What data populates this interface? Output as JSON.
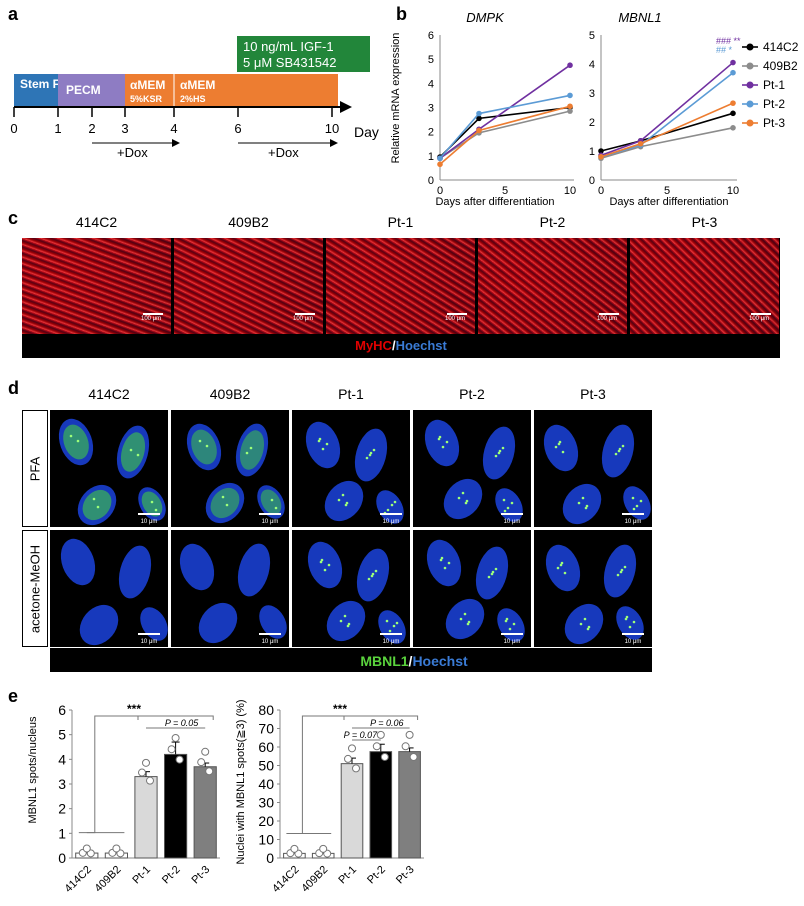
{
  "panel_labels": {
    "a": "a",
    "b": "b",
    "c": "c",
    "d": "d",
    "e": "e"
  },
  "timeline": {
    "stages": [
      "Stem Fit",
      "PECM",
      "αMEM",
      "αMEM"
    ],
    "stage_notes": [
      "5%KSR",
      "2%HS"
    ],
    "treatment": [
      "10 ng/mL IGF-1",
      "5 μM SB431542"
    ],
    "ticks": [
      "0",
      "1",
      "2",
      "3",
      "4",
      "6",
      "10"
    ],
    "unit": "Day",
    "dox_label": "+Dox",
    "colors": {
      "stemfit": "#2e75b6",
      "pecm": "#8e7cc3",
      "amem": "#ed7d31",
      "treat": "#22863a"
    }
  },
  "legend": {
    "items": [
      {
        "name": "414C2",
        "color": "#000000"
      },
      {
        "name": "409B2",
        "color": "#8c8c8c"
      },
      {
        "name": "Pt-1",
        "color": "#7030a0"
      },
      {
        "name": "Pt-2",
        "color": "#5b9bd5"
      },
      {
        "name": "Pt-3",
        "color": "#ed7d31"
      }
    ]
  },
  "sig_marks": {
    "row1": "###  **",
    "row2": "##    *"
  },
  "panel_c": {
    "lines": [
      "414C2",
      "409B2",
      "Pt-1",
      "Pt-2",
      "Pt-3"
    ],
    "scale": "100 μm",
    "stain_a": "MyHC",
    "stain_b": "Hoechst"
  },
  "panel_d": {
    "lines": [
      "414C2",
      "409B2",
      "Pt-1",
      "Pt-2",
      "Pt-3"
    ],
    "rows": [
      "PFA",
      "acetone-MeOH"
    ],
    "scale": "10 μm",
    "stain_a": "MBNL1",
    "stain_b": "Hoechst"
  },
  "chart_data": [
    {
      "type": "line",
      "title": "DMPK",
      "xlabel": "Days after differentiation",
      "ylabel": "Relative mRNA expression",
      "x": [
        0,
        3,
        10
      ],
      "ylim": [
        0,
        6
      ],
      "yticks": [
        0,
        1,
        2,
        3,
        4,
        5,
        6
      ],
      "series": [
        {
          "name": "414C2",
          "values": [
            0.95,
            2.55,
            3.0
          ]
        },
        {
          "name": "409B2",
          "values": [
            0.9,
            1.95,
            2.85
          ]
        },
        {
          "name": "Pt-1",
          "values": [
            0.9,
            2.1,
            4.75
          ]
        },
        {
          "name": "Pt-2",
          "values": [
            0.9,
            2.75,
            3.5
          ]
        },
        {
          "name": "Pt-3",
          "values": [
            0.65,
            2.05,
            3.05
          ]
        }
      ]
    },
    {
      "type": "line",
      "title": "MBNL1",
      "xlabel": "Days after differentiation",
      "ylabel": "",
      "x": [
        0,
        3,
        10
      ],
      "ylim": [
        0,
        5
      ],
      "yticks": [
        0,
        1,
        2,
        3,
        4,
        5
      ],
      "series": [
        {
          "name": "414C2",
          "values": [
            1.0,
            1.35,
            2.3
          ]
        },
        {
          "name": "409B2",
          "values": [
            0.75,
            1.15,
            1.8
          ]
        },
        {
          "name": "Pt-1",
          "values": [
            0.85,
            1.35,
            4.05
          ]
        },
        {
          "name": "Pt-2",
          "values": [
            0.8,
            1.2,
            3.7
          ]
        },
        {
          "name": "Pt-3",
          "values": [
            0.8,
            1.25,
            2.65
          ]
        }
      ]
    },
    {
      "type": "bar",
      "title": "",
      "ylabel": "MBNL1 spots/nucleus",
      "categories": [
        "414C2",
        "409B2",
        "Pt-1",
        "Pt-2",
        "Pt-3"
      ],
      "values": [
        0.2,
        0.2,
        3.3,
        4.2,
        3.7
      ],
      "errors": [
        0.1,
        0.1,
        0.2,
        0.5,
        0.15
      ],
      "ylim": [
        0,
        6
      ],
      "yticks": [
        0,
        1,
        2,
        3,
        4,
        5,
        6
      ],
      "annotations": [
        "***",
        "P = 0.05"
      ]
    },
    {
      "type": "bar",
      "title": "",
      "ylabel": "Nuclei with MBNL1 spots(≧3) (%)",
      "categories": [
        "414C2",
        "409B2",
        "Pt-1",
        "Pt-2",
        "Pt-3"
      ],
      "values": [
        2.5,
        2.5,
        51,
        57.5,
        57.5
      ],
      "errors": [
        1,
        1,
        3,
        4,
        2
      ],
      "ylim": [
        0,
        80
      ],
      "yticks": [
        0,
        10,
        20,
        30,
        40,
        50,
        60,
        70,
        80
      ],
      "annotations": [
        "***",
        "P = 0.06",
        "P = 0.07"
      ]
    }
  ]
}
